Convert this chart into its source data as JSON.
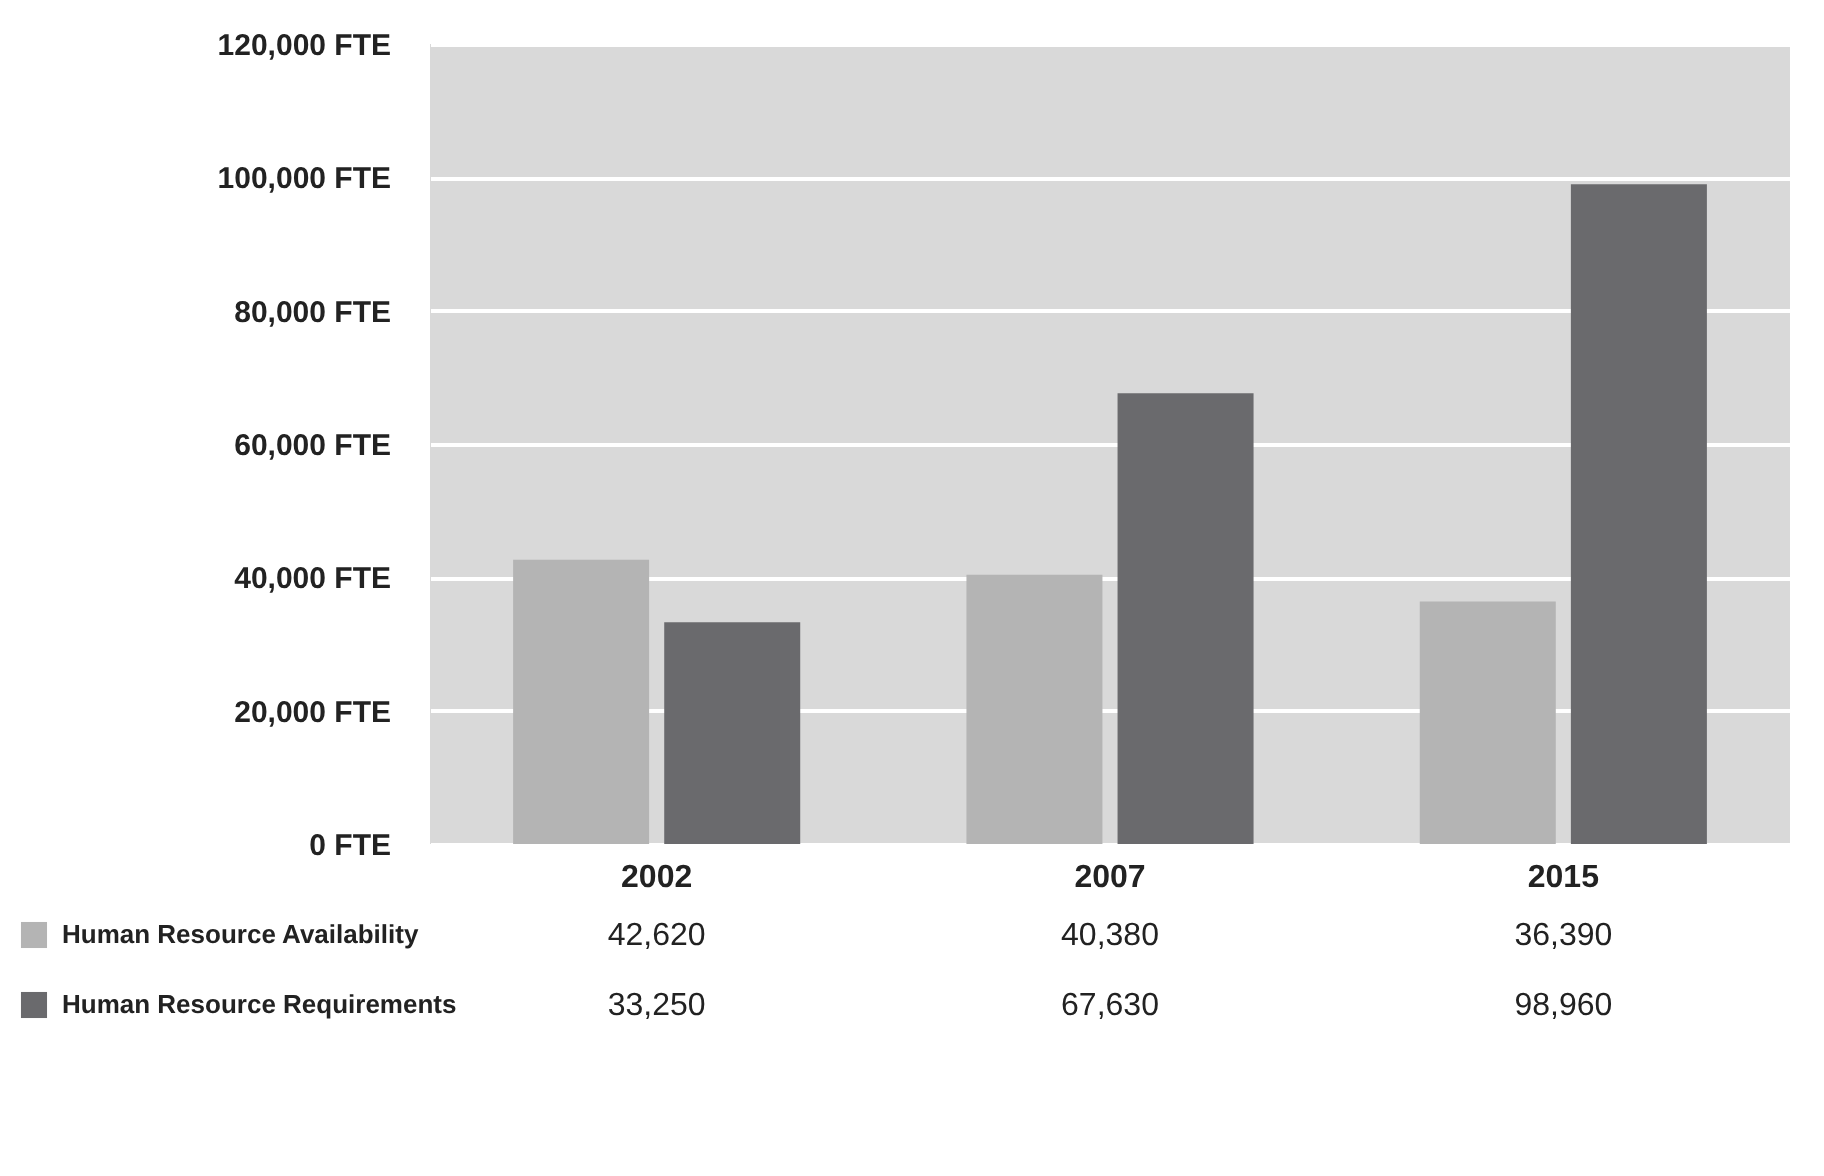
{
  "chart_data": {
    "type": "bar",
    "categories": [
      "2002",
      "2007",
      "2015"
    ],
    "series": [
      {
        "name": "Human Resource Availability",
        "color": "#b4b4b4",
        "values": [
          42620,
          40380,
          36390
        ],
        "value_labels": [
          "42,620",
          "40,380",
          "36,390"
        ]
      },
      {
        "name": "Human Resource Requirements",
        "color": "#6a6a6d",
        "values": [
          33250,
          67630,
          98960
        ],
        "value_labels": [
          "33,250",
          "67,630",
          "98,960"
        ]
      }
    ],
    "ylim": [
      0,
      120000
    ],
    "yticks": [
      {
        "value": 0,
        "label": "0 FTE"
      },
      {
        "value": 20000,
        "label": "20,000 FTE"
      },
      {
        "value": 40000,
        "label": "40,000 FTE"
      },
      {
        "value": 60000,
        "label": "60,000 FTE"
      },
      {
        "value": 80000,
        "label": "80,000 FTE"
      },
      {
        "value": 100000,
        "label": "100,000 FTE"
      },
      {
        "value": 120000,
        "label": "120,000 FTE"
      }
    ],
    "grid": "y",
    "legend": "bottom"
  }
}
